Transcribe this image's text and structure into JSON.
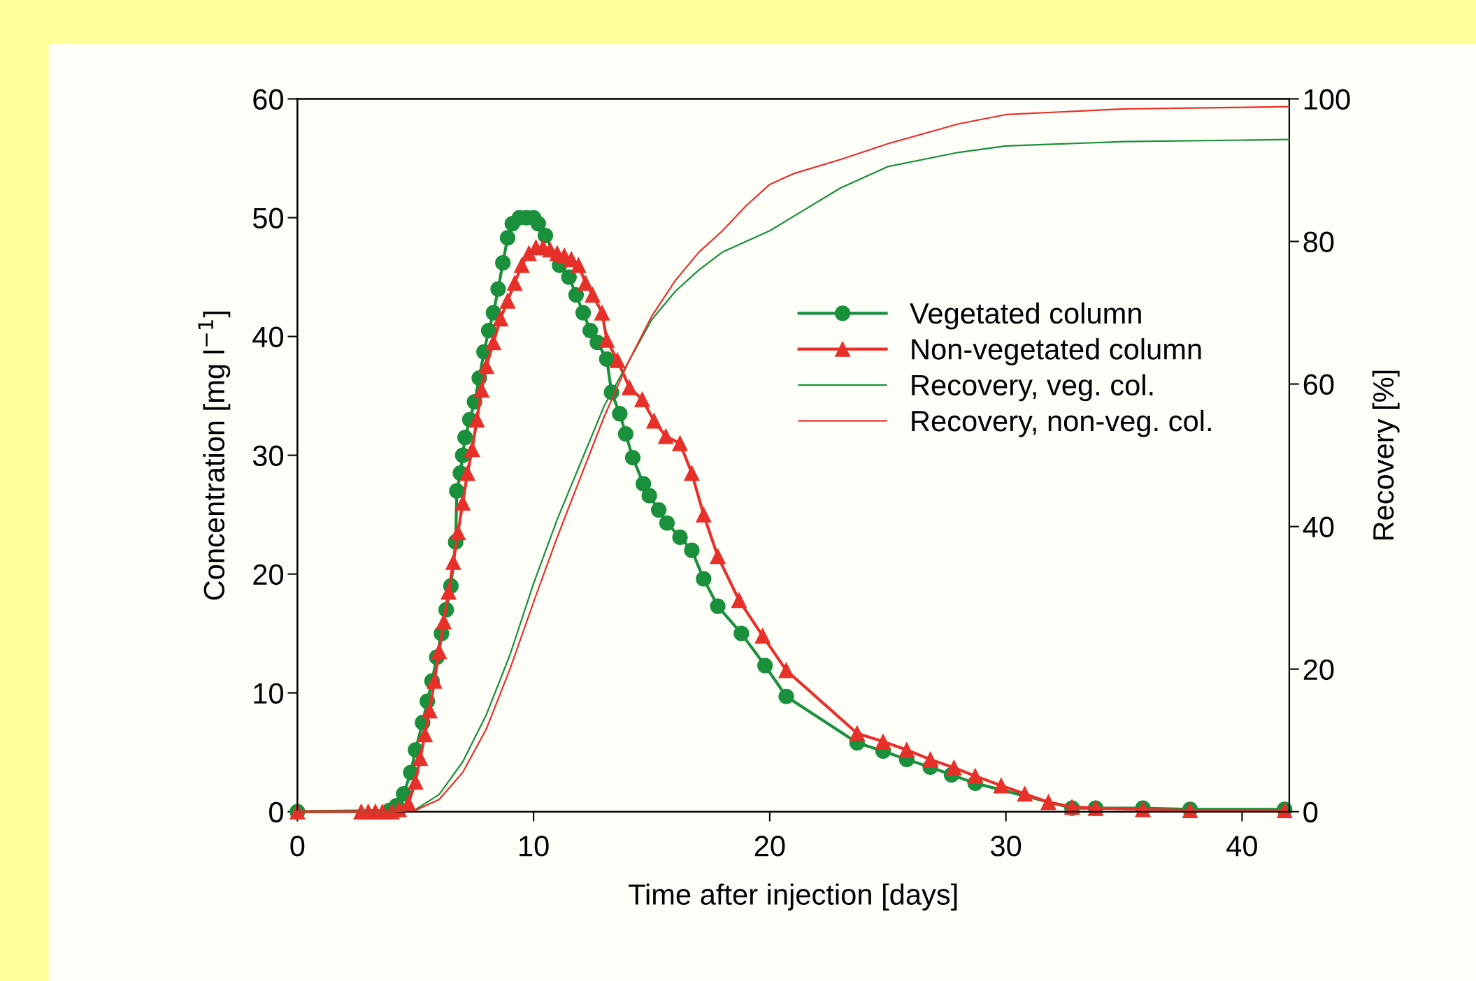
{
  "chart_data": {
    "type": "line",
    "xlabel": "Time after injection [days]",
    "ylabel": "Concentration [mg l$^{−1}$]",
    "y2label": "Recovery [%]",
    "xlim": [
      0,
      42
    ],
    "xticks": [
      0,
      10,
      20,
      30,
      40
    ],
    "ylim": [
      0,
      60
    ],
    "yticks": [
      0,
      10,
      20,
      30,
      40,
      50,
      60
    ],
    "y2lim": [
      0,
      100
    ],
    "y2ticks": [
      0,
      20,
      40,
      60,
      80,
      100
    ],
    "grid": false,
    "legend": "right",
    "series": [
      {
        "name": "Vegetated column",
        "color": "#1a8f3c",
        "marker": "circle",
        "x": [
          0,
          3.9,
          4.2,
          4.5,
          4.8,
          5.0,
          5.3,
          5.5,
          5.7,
          5.9,
          6.1,
          6.3,
          6.5,
          6.7,
          6.75,
          6.9,
          7.0,
          7.1,
          7.3,
          7.5,
          7.7,
          7.9,
          8.1,
          8.3,
          8.5,
          8.7,
          8.9,
          9.1,
          9.4,
          9.7,
          10.0,
          10.2,
          10.5,
          11.1,
          11.5,
          11.8,
          12.1,
          12.4,
          12.7,
          13.1,
          13.3,
          13.65,
          13.9,
          14.2,
          14.65,
          14.9,
          15.3,
          15.65,
          16.2,
          16.7,
          17.2,
          17.8,
          18.8,
          19.8,
          20.7,
          23.7,
          24.8,
          25.8,
          26.8,
          27.7,
          28.7,
          32.8,
          33.8,
          35.8,
          37.8,
          41.8
        ],
        "values": [
          0,
          0.1,
          0.5,
          1.5,
          3.3,
          5.2,
          7.5,
          9.3,
          11,
          13,
          15,
          17,
          19,
          22.7,
          27,
          28.5,
          30,
          31.5,
          33,
          34.5,
          36.5,
          38.7,
          40.5,
          42,
          44,
          46.2,
          48.3,
          49.5,
          50,
          50,
          50,
          49.5,
          48.5,
          46,
          45,
          43.5,
          42,
          40.5,
          39.5,
          38.1,
          35.3,
          33.5,
          31.8,
          29.8,
          27.6,
          26.6,
          25.4,
          24.3,
          23.1,
          22,
          19.6,
          17.3,
          15,
          12.3,
          9.7,
          5.8,
          5.1,
          4.4,
          3.75,
          3.1,
          2.4,
          0.3,
          0.3,
          0.3,
          0.2,
          0.2
        ]
      },
      {
        "name": "Non-vegetated column",
        "color": "#e8302a",
        "marker": "triangle",
        "x": [
          0,
          2.7,
          3.0,
          3.3,
          3.6,
          4.0,
          4.3,
          4.7,
          5.0,
          5.2,
          5.4,
          5.6,
          5.8,
          6.0,
          6.2,
          6.4,
          6.6,
          6.8,
          7.0,
          7.2,
          7.4,
          7.6,
          7.8,
          8.0,
          8.3,
          8.6,
          8.9,
          9.2,
          9.5,
          9.8,
          10.1,
          10.4,
          10.7,
          11.0,
          11.3,
          11.6,
          11.9,
          12.2,
          12.5,
          12.9,
          13.1,
          13.55,
          14.06,
          14.6,
          15.1,
          15.6,
          16.2,
          16.7,
          17.2,
          17.8,
          18.7,
          19.7,
          20.7,
          23.7,
          24.8,
          25.8,
          26.8,
          27.8,
          28.7,
          29.8,
          30.8,
          31.8,
          32.8,
          33.8,
          35.8,
          37.8,
          41.8
        ],
        "values": [
          0,
          0,
          0,
          0,
          0,
          0,
          0.2,
          0.7,
          2.5,
          4.5,
          6.5,
          8.5,
          11,
          13.5,
          16,
          18.5,
          21,
          23.5,
          26,
          28.5,
          30.5,
          33,
          35.5,
          37.5,
          39.5,
          41.5,
          43,
          44.5,
          46,
          47,
          47.5,
          47.5,
          47.3,
          47,
          46.8,
          46.5,
          46,
          44.5,
          43.5,
          42,
          39.7,
          38,
          35.7,
          34.7,
          32.9,
          31.6,
          31,
          28.5,
          25,
          21.5,
          17.8,
          14.8,
          11.9,
          6.6,
          5.9,
          5.2,
          4.4,
          3.7,
          3,
          2.2,
          1.5,
          0.8,
          0.4,
          0.3,
          0.2,
          0.1,
          0.1
        ]
      },
      {
        "name": "Recovery, veg. col.",
        "color": "#1a8f3c",
        "marker": "none",
        "axis": "y2",
        "x": [
          0,
          4,
          5,
          6,
          7,
          8,
          9,
          10,
          11,
          12,
          13,
          14,
          15,
          16,
          17,
          18,
          19,
          20,
          21,
          23,
          25,
          28,
          30,
          35,
          42
        ],
        "values": [
          0,
          0,
          0.3,
          2.4,
          7,
          13.6,
          22,
          32,
          41,
          49,
          57,
          63,
          69,
          73,
          76,
          78.5,
          80,
          81.5,
          83.5,
          87.5,
          90.5,
          92.5,
          93.4,
          94,
          94.3
        ]
      },
      {
        "name": "Recovery, non-veg. col.",
        "color": "#e8302a",
        "marker": "none",
        "axis": "y2",
        "x": [
          0,
          4,
          5,
          6,
          7,
          8,
          9,
          10,
          11,
          12,
          13,
          14,
          15,
          16,
          17,
          18,
          19,
          20,
          21,
          23,
          25,
          28,
          30,
          35,
          42
        ],
        "values": [
          0,
          0,
          0.2,
          1.7,
          5.5,
          11.6,
          20,
          29.4,
          38.5,
          47,
          55.5,
          63,
          69.5,
          74.5,
          78.5,
          81.5,
          85,
          88,
          89.5,
          91.5,
          93.7,
          96.5,
          97.8,
          98.6,
          98.9
        ]
      }
    ]
  }
}
